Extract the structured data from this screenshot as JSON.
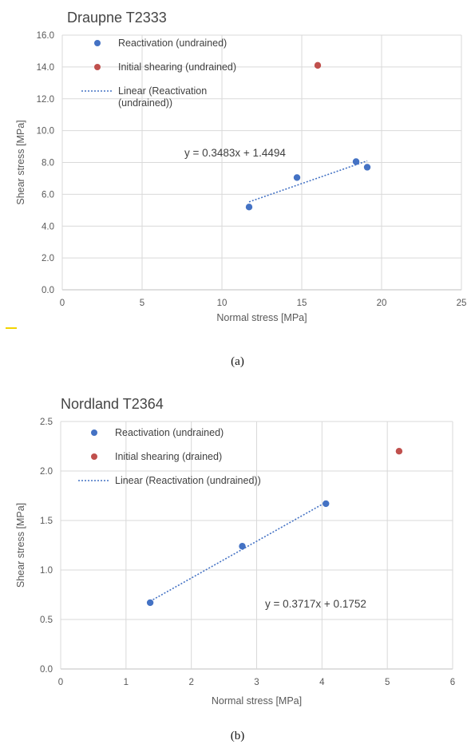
{
  "chart_data": [
    {
      "type": "scatter",
      "title": "Draupne T2333",
      "xlabel": "Normal stress [MPa]",
      "ylabel": "Shear stress [MPa]",
      "xlim": [
        0,
        25
      ],
      "ylim": [
        0,
        16
      ],
      "x_ticks": [
        "0",
        "5",
        "10",
        "15",
        "20",
        "25"
      ],
      "y_ticks": [
        "0.0",
        "2.0",
        "4.0",
        "6.0",
        "8.0",
        "10.0",
        "12.0",
        "14.0",
        "16.0"
      ],
      "grid": true,
      "legend_position": "top-left",
      "series": [
        {
          "name": "Reactivation (undrained)",
          "color": "#4472c4",
          "points": [
            [
              11.7,
              5.2
            ],
            [
              14.7,
              7.05
            ],
            [
              18.4,
              8.05
            ],
            [
              19.1,
              7.7
            ]
          ]
        },
        {
          "name": "Initial shearing (undrained)",
          "color": "#c0504d",
          "points": [
            [
              16.0,
              14.1
            ]
          ]
        }
      ],
      "trendline": {
        "name": "Linear (Reactivation (undrained))",
        "name_lines": [
          "Linear (Reactivation",
          "(undrained))"
        ],
        "slope": 0.3483,
        "intercept": 1.4494,
        "x_range": [
          11.7,
          19.1
        ],
        "equation": "y = 0.3483x + 1.4494",
        "color": "#4472c4"
      }
    },
    {
      "type": "scatter",
      "title": "Nordland T2364",
      "xlabel": "Normal stress [MPa]",
      "ylabel": "Shear stress [MPa]",
      "xlim": [
        0,
        6
      ],
      "ylim": [
        0,
        2.5
      ],
      "x_ticks": [
        "0",
        "1",
        "2",
        "3",
        "4",
        "5",
        "6"
      ],
      "y_ticks": [
        "0.0",
        "0.5",
        "1.0",
        "1.5",
        "2.0",
        "2.5"
      ],
      "grid": true,
      "legend_position": "top-left",
      "series": [
        {
          "name": "Reactivation (undrained)",
          "color": "#4472c4",
          "points": [
            [
              1.37,
              0.67
            ],
            [
              2.78,
              1.24
            ],
            [
              4.06,
              1.67
            ]
          ]
        },
        {
          "name": "Initial shearing (drained)",
          "color": "#c0504d",
          "points": [
            [
              5.18,
              2.2
            ]
          ]
        }
      ],
      "trendline": {
        "name": "Linear (Reactivation (undrained))",
        "name_lines": [
          "Linear (Reactivation (undrained))"
        ],
        "slope": 0.3717,
        "intercept": 0.1752,
        "x_range": [
          1.37,
          4.06
        ],
        "equation": "y = 0.3717x + 0.1752",
        "color": "#4472c4"
      }
    }
  ],
  "captions": [
    "(a)",
    "(b)"
  ]
}
